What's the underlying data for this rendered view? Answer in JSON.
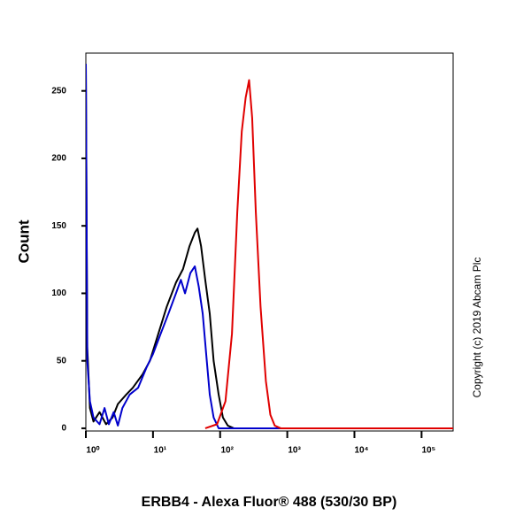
{
  "chart_data": {
    "type": "line",
    "x_label": "ERBB4 - Alexa Fluor® 488 (530/30 BP)",
    "y_label": "Count",
    "annotation": "Copyright (c) 2019 Abcam Plc",
    "x_log": true,
    "xlim": [
      1,
      295000
    ],
    "ylim": [
      -2,
      278
    ],
    "xticks": [
      {
        "value": 1,
        "label": "10⁰"
      },
      {
        "value": 10,
        "label": "10¹"
      },
      {
        "value": 100,
        "label": "10²"
      },
      {
        "value": 1000,
        "label": "10³"
      },
      {
        "value": 10000,
        "label": "10⁴"
      },
      {
        "value": 100000,
        "label": "10⁵"
      }
    ],
    "yticks": [
      0,
      50,
      100,
      150,
      200,
      250
    ],
    "series": [
      {
        "color": "#000000",
        "x": [
          1,
          1.05,
          1.15,
          1.3,
          1.6,
          2,
          2.5,
          3,
          4,
          5,
          7,
          9,
          12,
          16,
          22,
          28,
          35,
          42,
          46,
          52,
          60,
          70,
          80,
          95,
          110,
          130,
          160,
          295000
        ],
        "values": [
          270,
          60,
          15,
          5,
          12,
          3,
          8,
          18,
          25,
          30,
          40,
          50,
          70,
          90,
          108,
          118,
          135,
          145,
          148,
          135,
          110,
          85,
          50,
          25,
          8,
          2,
          0,
          0
        ]
      },
      {
        "color": "#0000cc",
        "x": [
          1,
          1.05,
          1.15,
          1.3,
          1.6,
          1.9,
          2.2,
          2.6,
          3,
          3.5,
          4.5,
          6,
          8,
          10,
          13,
          17,
          22,
          26,
          30,
          36,
          42,
          48,
          55,
          62,
          70,
          80,
          95,
          295000
        ],
        "values": [
          270,
          50,
          20,
          8,
          3,
          15,
          3,
          12,
          2,
          15,
          25,
          30,
          45,
          55,
          70,
          85,
          100,
          110,
          100,
          115,
          120,
          105,
          85,
          55,
          25,
          8,
          0,
          0
        ]
      },
      {
        "color": "#e00000",
        "x": [
          60,
          90,
          120,
          150,
          180,
          210,
          240,
          270,
          300,
          340,
          400,
          480,
          560,
          650,
          800,
          295000
        ],
        "values": [
          0,
          3,
          20,
          70,
          160,
          220,
          245,
          258,
          230,
          160,
          90,
          35,
          10,
          2,
          0,
          0
        ]
      }
    ]
  }
}
